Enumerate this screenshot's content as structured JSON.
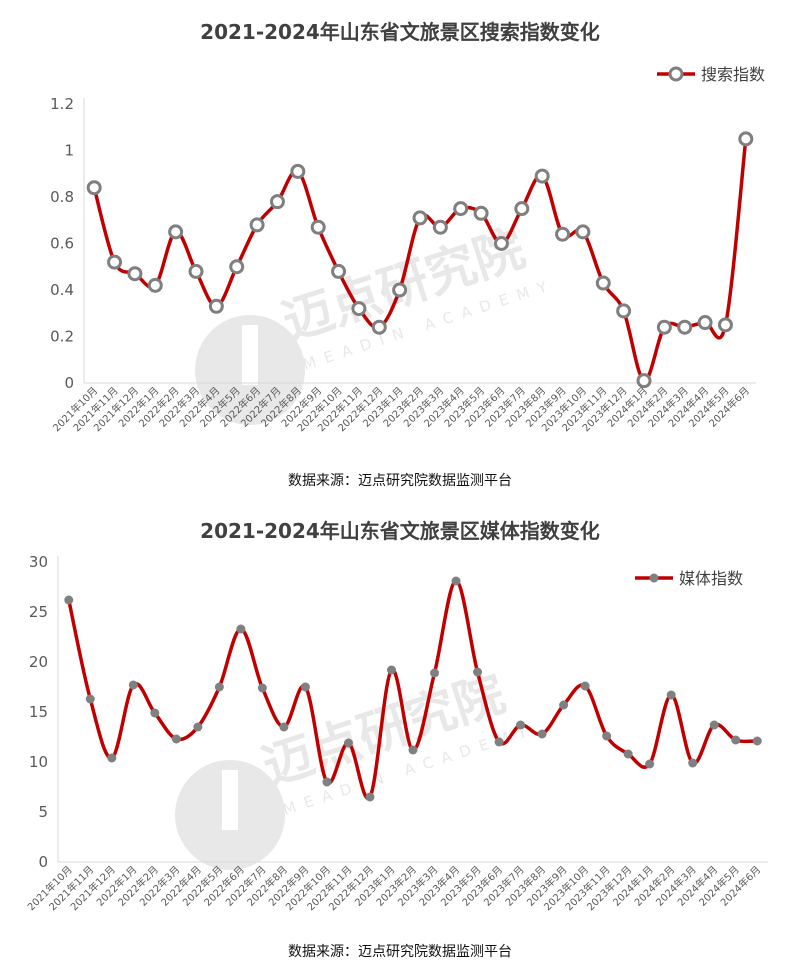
{
  "colors": {
    "line": "#c00000",
    "marker1_stroke": "#7f7f7f",
    "marker1_fill": "#ffffff",
    "marker2_fill": "#808080",
    "axis": "#d9d9d9",
    "tick_text": "#595959",
    "watermark": "#bfbfbf"
  },
  "watermark": {
    "text_cn": "迈点研究院",
    "text_en": "MEADIN ACADEMY"
  },
  "chart_data": [
    {
      "type": "line",
      "title": "2021-2024年山东省文旅景区搜索指数变化",
      "legend": "搜索指数",
      "legend_position": "top-right",
      "source": "数据来源：迈点研究院数据监测平台",
      "xlabel": "",
      "ylabel": "",
      "ylim": [
        0,
        1.2
      ],
      "yticks": [
        "0",
        "0.2",
        "0.4",
        "0.6",
        "0.8",
        "1",
        "1.2"
      ],
      "ytick_values": [
        0,
        0.2,
        0.4,
        0.6,
        0.8,
        1,
        1.2
      ],
      "categories": [
        "2021年10月",
        "2021年11月",
        "2021年12月",
        "2022年1月",
        "2022年2月",
        "2022年3月",
        "2022年4月",
        "2022年5月",
        "2022年6月",
        "2022年7月",
        "2022年8月",
        "2022年9月",
        "2022年10月",
        "2022年11月",
        "2022年12月",
        "2023年1月",
        "2023年2月",
        "2023年3月",
        "2023年4月",
        "2023年5月",
        "2023年6月",
        "2023年7月",
        "2023年8月",
        "2023年9月",
        "2023年10月",
        "2023年11月",
        "2023年12月",
        "2024年1月",
        "2024年2月",
        "2024年3月",
        "2024年4月",
        "2024年5月",
        "2024年6月"
      ],
      "values": [
        0.84,
        0.52,
        0.47,
        0.42,
        0.65,
        0.48,
        0.33,
        0.5,
        0.68,
        0.78,
        0.91,
        0.67,
        0.48,
        0.32,
        0.24,
        0.4,
        0.71,
        0.67,
        0.75,
        0.73,
        0.6,
        0.75,
        0.89,
        0.64,
        0.65,
        0.43,
        0.31,
        0.01,
        0.24,
        0.24,
        0.26,
        0.25,
        1.05
      ]
    },
    {
      "type": "line",
      "title": "2021-2024年山东省文旅景区媒体指数变化",
      "legend": "媒体指数",
      "legend_position": "top-right",
      "source": "数据来源：迈点研究院数据监测平台",
      "xlabel": "",
      "ylabel": "",
      "ylim": [
        0,
        30
      ],
      "yticks": [
        "0",
        "5",
        "10",
        "15",
        "20",
        "25",
        "30"
      ],
      "ytick_values": [
        0,
        5,
        10,
        15,
        20,
        25,
        30
      ],
      "categories": [
        "2021年10月",
        "2021年11月",
        "2021年12月",
        "2022年1月",
        "2022年2月",
        "2022年3月",
        "2022年4月",
        "2022年5月",
        "2022年6月",
        "2022年7月",
        "2022年8月",
        "2022年9月",
        "2022年10月",
        "2022年11月",
        "2022年12月",
        "2023年1月",
        "2023年2月",
        "2023年3月",
        "2023年4月",
        "2023年5月",
        "2023年6月",
        "2023年7月",
        "2023年8月",
        "2023年9月",
        "2023年10月",
        "2023年11月",
        "2023年12月",
        "2024年1月",
        "2024年2月",
        "2024年3月",
        "2024年4月",
        "2024年5月",
        "2024年6月"
      ],
      "values": [
        26.2,
        16.3,
        10.4,
        17.7,
        14.9,
        12.3,
        13.5,
        17.5,
        23.3,
        17.4,
        13.5,
        17.5,
        8.0,
        11.9,
        6.5,
        19.2,
        11.2,
        18.9,
        28.1,
        19.0,
        12.0,
        13.7,
        12.8,
        15.7,
        17.6,
        12.6,
        10.8,
        9.8,
        16.7,
        9.9,
        13.7,
        12.2,
        12.1
      ]
    }
  ]
}
